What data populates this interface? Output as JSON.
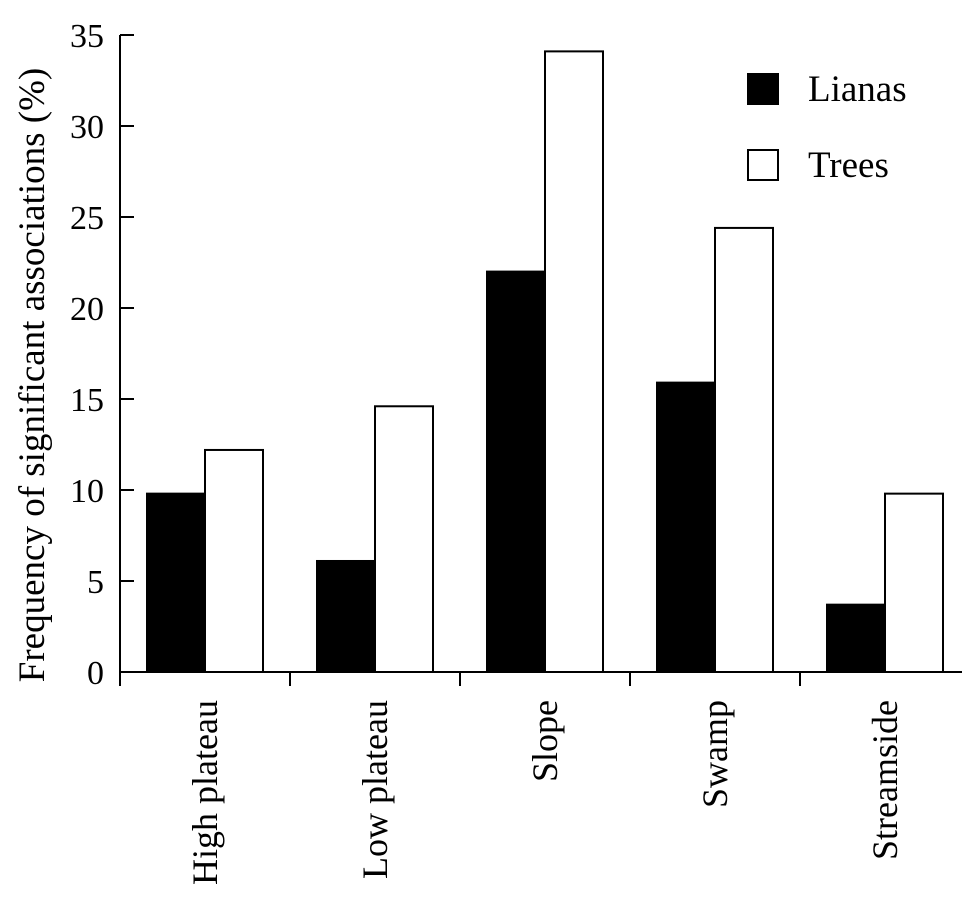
{
  "chart_data": {
    "type": "bar",
    "title": "",
    "xlabel": "",
    "ylabel": "Frequency of significant associations (%)",
    "ylim": [
      0,
      35
    ],
    "yticks": [
      0,
      5,
      10,
      15,
      20,
      25,
      30,
      35
    ],
    "grid": false,
    "legend_position": "top-right",
    "categories": [
      "High plateau",
      "Low plateau",
      "Slope",
      "Swamp",
      "Streamside"
    ],
    "series": [
      {
        "name": "Lianas",
        "color": "#000000",
        "values": [
          9.8,
          6.1,
          22.0,
          15.9,
          3.7
        ]
      },
      {
        "name": "Trees",
        "color": "#ffffff",
        "values": [
          12.2,
          14.6,
          34.1,
          24.4,
          9.8
        ]
      }
    ]
  }
}
